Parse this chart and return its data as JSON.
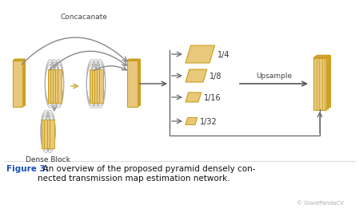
{
  "background_color": "#ffffff",
  "gold_face": "#E8C87A",
  "gold_edge": "#C8A020",
  "gold_side": "#D4A030",
  "gray": "#888888",
  "dark_gray": "#555555",
  "arrow_gray": "#666666",
  "title": "Figure 3:",
  "title_color": "#1a4fba",
  "caption": "  An overview of the proposed pyramid densely con-\nnected transmission map estimation network.",
  "dense_block_label": "Dense Block",
  "concacanate_label": "Concacanate",
  "upsample_label": "Upsample",
  "scale_labels": [
    "1/4",
    "1/8",
    "1/16",
    "1/32"
  ],
  "watermark": "© GiantPandaCV"
}
